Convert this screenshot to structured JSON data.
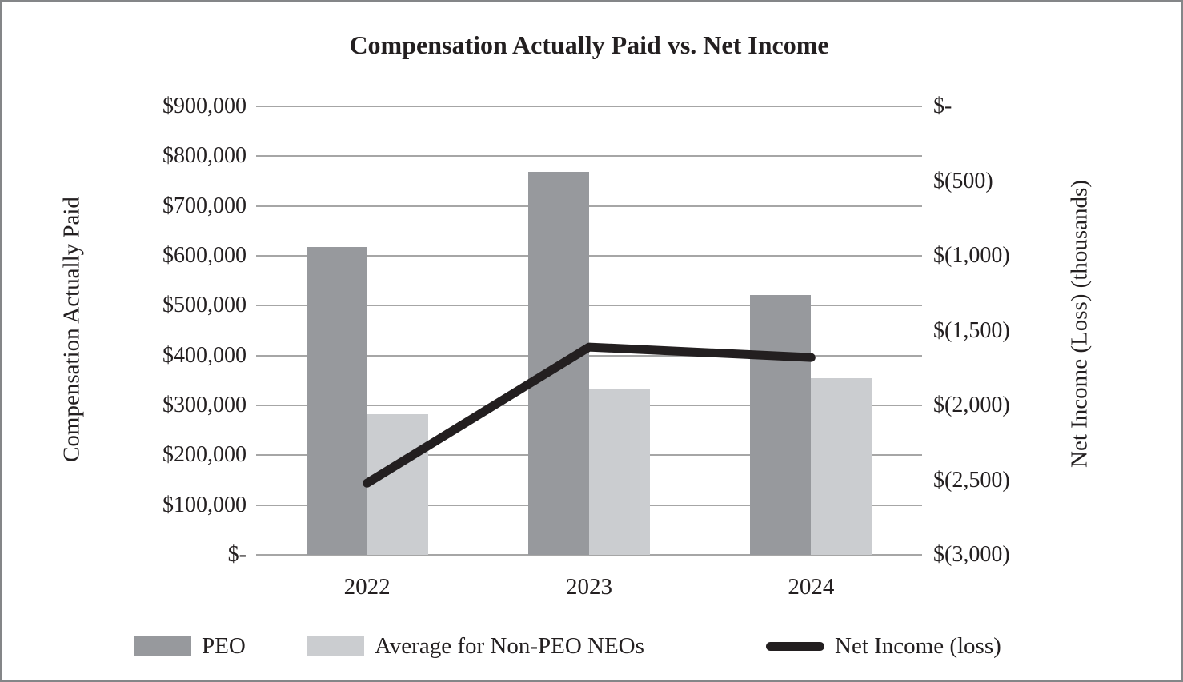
{
  "colors": {
    "peo_bar": "#97999d",
    "non_peo_bar": "#cbcdd0",
    "net_income_line": "#231f20",
    "gridline": "#a6a6a6",
    "text": "#231f20",
    "page_border": "#848688"
  },
  "chart_data": {
    "type": "combo",
    "subtype": "grouped-bar-with-line",
    "title": "Compensation Actually Paid vs. Net Income",
    "categories": [
      "2022",
      "2023",
      "2024"
    ],
    "series": [
      {
        "name": "PEO",
        "type": "bar",
        "axis": "left",
        "values": [
          618000,
          768000,
          522000
        ]
      },
      {
        "name": "Average for Non-PEO NEOs",
        "type": "bar",
        "axis": "left",
        "values": [
          283000,
          333000,
          354000
        ]
      },
      {
        "name": "Net Income (loss)",
        "type": "line",
        "axis": "right",
        "values": [
          -2520,
          -1610,
          -1680
        ]
      }
    ],
    "left_axis": {
      "title": "Compensation Actually Paid",
      "min": 0,
      "max": 900000,
      "ticks": [
        {
          "label": "$900,000",
          "value": 900000
        },
        {
          "label": "$800,000",
          "value": 800000
        },
        {
          "label": "$700,000",
          "value": 700000
        },
        {
          "label": "$600,000",
          "value": 600000
        },
        {
          "label": "$500,000",
          "value": 500000
        },
        {
          "label": "$400,000",
          "value": 400000
        },
        {
          "label": "$300,000",
          "value": 300000
        },
        {
          "label": "$200,000",
          "value": 200000
        },
        {
          "label": "$100,000",
          "value": 100000
        },
        {
          "label": "$-",
          "value": 0
        }
      ]
    },
    "right_axis": {
      "title": "Net Income (Loss) (thousands)",
      "min": -3000,
      "max": 0,
      "ticks": [
        {
          "label": "$-",
          "value": 0
        },
        {
          "label": "$(500)",
          "value": -500
        },
        {
          "label": "$(1,000)",
          "value": -1000
        },
        {
          "label": "$(1,500)",
          "value": -1500
        },
        {
          "label": "$(2,000)",
          "value": -2000
        },
        {
          "label": "$(2,500)",
          "value": -2500
        },
        {
          "label": "$(3,000)",
          "value": -3000
        }
      ]
    },
    "legend": {
      "position": "bottom",
      "entries": [
        "PEO",
        "Average for Non-PEO NEOs",
        "Net Income (loss)"
      ]
    },
    "grid": true
  }
}
